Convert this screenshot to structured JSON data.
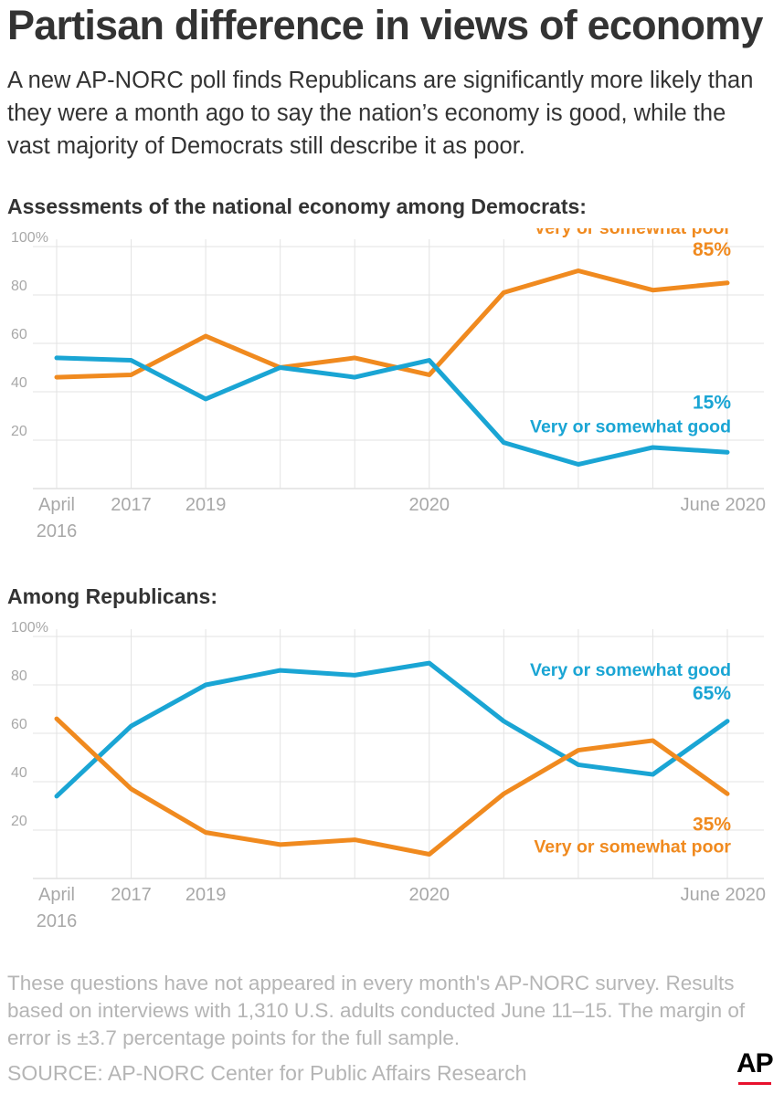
{
  "header": {
    "title": "Partisan difference in views of economy",
    "intro": "A new AP-NORC poll finds Republicans are significantly more likely than they were a month ago to say the nation’s economy is good, while the vast majority of Democrats still describe it as poor."
  },
  "colors": {
    "poor": "#f08a1f",
    "good": "#1aa5d4",
    "grid": "#e3e3e3",
    "tick_text": "#a8a8a8"
  },
  "chart_data": [
    {
      "type": "line",
      "title": "Assessments of the national economy among Democrats:",
      "ylim": [
        0,
        100
      ],
      "y_ticks": [
        "100%",
        "80",
        "60",
        "40",
        "20"
      ],
      "x_tick_labels": [
        {
          "lines": [
            "April",
            "2016"
          ],
          "at": 0
        },
        {
          "lines": [
            "2017"
          ],
          "at": 1
        },
        {
          "lines": [
            "2019"
          ],
          "at": 2
        },
        {
          "lines": [
            "2020"
          ],
          "at": 5
        },
        {
          "lines": [
            "June 2020"
          ],
          "at": 9
        }
      ],
      "grid": true,
      "series": [
        {
          "name": "Very or somewhat poor",
          "key": "poor",
          "end_label": "85%",
          "values": [
            46,
            47,
            63,
            50,
            54,
            47,
            81,
            90,
            82,
            85
          ]
        },
        {
          "name": "Very or somewhat good",
          "key": "good",
          "end_label": "15%",
          "values": [
            54,
            53,
            37,
            50,
            46,
            53,
            19,
            10,
            17,
            15
          ]
        }
      ]
    },
    {
      "type": "line",
      "title": "Among Republicans:",
      "ylim": [
        0,
        100
      ],
      "y_ticks": [
        "100%",
        "80",
        "60",
        "40",
        "20"
      ],
      "x_tick_labels": [
        {
          "lines": [
            "April",
            "2016"
          ],
          "at": 0
        },
        {
          "lines": [
            "2017"
          ],
          "at": 1
        },
        {
          "lines": [
            "2019"
          ],
          "at": 2
        },
        {
          "lines": [
            "2020"
          ],
          "at": 5
        },
        {
          "lines": [
            "June 2020"
          ],
          "at": 9
        }
      ],
      "grid": true,
      "series": [
        {
          "name": "Very or somewhat good",
          "key": "good",
          "end_label": "65%",
          "values": [
            34,
            63,
            80,
            86,
            84,
            89,
            65,
            47,
            43,
            65
          ]
        },
        {
          "name": "Very or somewhat poor",
          "key": "poor",
          "end_label": "35%",
          "values": [
            66,
            37,
            19,
            14,
            16,
            10,
            35,
            53,
            57,
            35
          ]
        }
      ]
    }
  ],
  "footer": {
    "note": "These questions have not appeared in every month's AP-NORC survey. Results based on interviews with 1,310 U.S. adults conducted June 11–15. The margin of error is ±3.7 percentage points for the full sample.",
    "source": "SOURCE: AP-NORC Center for Public Affairs Research",
    "logo_text": "AP"
  }
}
